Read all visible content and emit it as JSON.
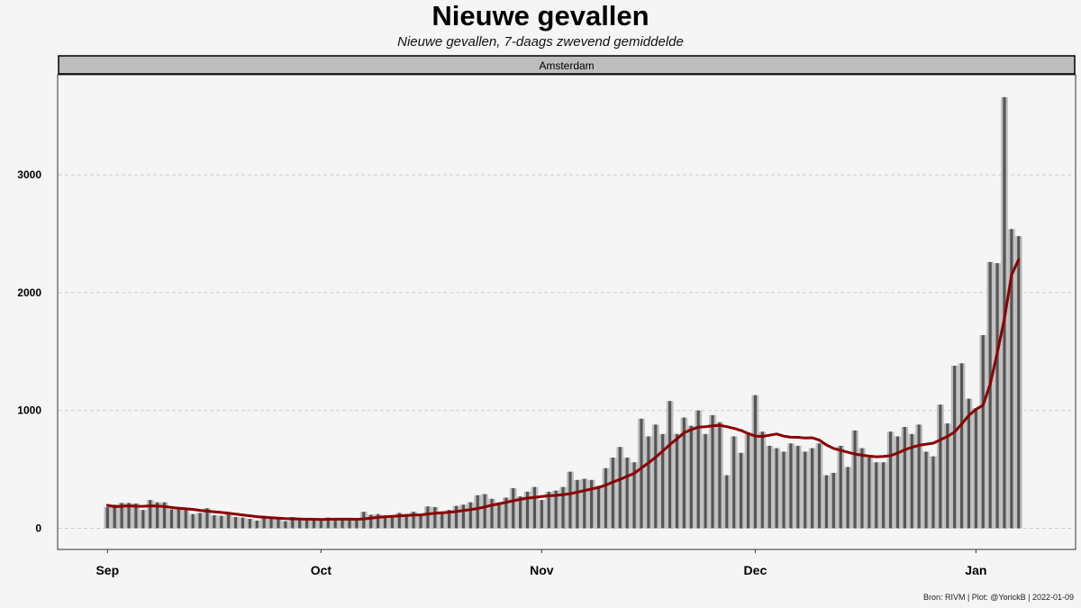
{
  "chart_data": {
    "type": "bar",
    "title": "Nieuwe gevallen",
    "subtitle": "Nieuwe gevallen, 7-daags zwevend gemiddelde",
    "facet_label": "Amsterdam",
    "caption": "Bron: RIVM | Plot: @YorickB |  2022-01-09",
    "x_ticks": [
      {
        "label": "Sep",
        "date": "2021-09-01"
      },
      {
        "label": "Oct",
        "date": "2021-10-01"
      },
      {
        "label": "Nov",
        "date": "2021-11-01"
      },
      {
        "label": "Dec",
        "date": "2021-12-01"
      },
      {
        "label": "Jan",
        "date": "2022-01-01"
      }
    ],
    "y_ticks": [
      0,
      1000,
      2000,
      3000
    ],
    "ylim": [
      -180,
      3850
    ],
    "xlim": [
      "2021-08-25",
      "2022-01-15"
    ],
    "grid": "horizontal dashed",
    "legend": "none",
    "colors": {
      "bar_outer": "#bdbdbd",
      "bar_inner": "#555555",
      "line": "#8b0000",
      "grid": "#cfcfcf",
      "strip": "#bdbdbd"
    },
    "series": [
      {
        "start_date": "2021-09-01",
        "values": [
          180,
          200,
          215,
          215,
          210,
          155,
          240,
          220,
          220,
          160,
          160,
          155,
          120,
          130,
          170,
          110,
          105,
          130,
          95,
          90,
          80,
          65,
          105,
          85,
          80,
          60,
          95,
          90,
          70,
          80,
          75,
          90,
          85,
          80,
          80,
          70,
          140,
          115,
          120,
          110,
          105,
          130,
          120,
          140,
          110,
          185,
          180,
          130,
          155,
          190,
          200,
          220,
          280,
          290,
          250,
          220,
          260,
          340,
          270,
          310,
          350,
          240,
          310,
          320,
          350,
          480,
          410,
          420,
          410,
          360,
          510,
          600,
          690,
          600,
          560,
          930,
          780,
          880,
          800,
          1080,
          800,
          940,
          870,
          1000,
          800,
          960,
          900,
          450,
          780,
          640,
          800,
          1130,
          820,
          700,
          680,
          650,
          720,
          700,
          650,
          680,
          720,
          450,
          470,
          700,
          520,
          830,
          680,
          600,
          560,
          560,
          820,
          780,
          860,
          800,
          880,
          650,
          610,
          1050,
          890,
          1380,
          1400,
          1100,
          1020,
          1640,
          2260,
          2250,
          3660,
          2540,
          2480
        ]
      }
    ],
    "moving_average": {
      "name": "7-daags zwevend gemiddelde",
      "values": [
        195,
        183,
        187,
        190,
        187,
        186,
        190,
        188,
        185,
        176,
        170,
        165,
        160,
        152,
        146,
        140,
        134,
        128,
        120,
        113,
        106,
        98,
        94,
        90,
        86,
        82,
        80,
        78,
        77,
        76,
        75,
        76,
        77,
        77,
        77,
        76,
        79,
        85,
        92,
        97,
        101,
        105,
        109,
        113,
        114,
        121,
        127,
        132,
        136,
        142,
        150,
        158,
        168,
        181,
        196,
        207,
        220,
        233,
        245,
        256,
        262,
        270,
        276,
        279,
        286,
        293,
        306,
        320,
        333,
        346,
        367,
        392,
        415,
        441,
        466,
        511,
        555,
        603,
        655,
        710,
        759,
        810,
        838,
        858,
        862,
        870,
        874,
        862,
        848,
        830,
        805,
        782,
        780,
        790,
        800,
        782,
        773,
        772,
        766,
        768,
        748,
        707,
        678,
        662,
        645,
        630,
        620,
        612,
        607,
        609,
        616,
        638,
        666,
        688,
        704,
        714,
        722,
        751,
        780,
        817,
        886,
        958,
        1010,
        1045,
        1223,
        1490,
        1780,
        2150,
        2280
      ]
    }
  }
}
